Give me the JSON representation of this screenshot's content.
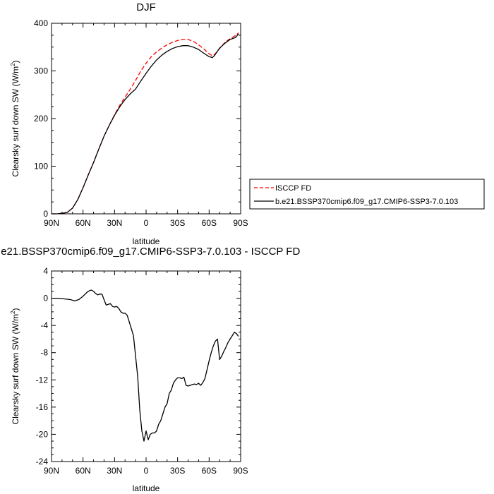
{
  "chart_data": [
    {
      "type": "line",
      "title": "DJF",
      "xlabel": "latitude",
      "ylabel": "Clearsky surf down SW (W/m",
      "ylabel_sup": "2",
      "ylabel_end": ")",
      "xlim": [
        90,
        -90
      ],
      "ylim": [
        0,
        400
      ],
      "xticks": [
        90,
        60,
        30,
        0,
        -30,
        -60,
        -90
      ],
      "xtick_labels": [
        "90N",
        "60N",
        "30N",
        "0",
        "30S",
        "60S",
        "90S"
      ],
      "yticks": [
        0,
        100,
        200,
        300,
        400
      ],
      "ytick_labels": [
        "0",
        "100",
        "200",
        "300",
        "400"
      ],
      "legend": "right",
      "series": [
        {
          "name": "ISCCP FD",
          "color": "#ff0000",
          "dash": "dashed",
          "x": [
            90,
            85,
            80,
            75,
            70,
            65,
            60,
            55,
            50,
            45,
            40,
            35,
            30,
            25,
            20,
            15,
            10,
            5,
            0,
            -5,
            -10,
            -15,
            -20,
            -25,
            -30,
            -35,
            -40,
            -45,
            -50,
            -55,
            -60,
            -63,
            -65,
            -70,
            -75,
            -80,
            -85,
            -88
          ],
          "y": [
            0,
            0,
            1,
            3,
            12,
            30,
            55,
            82,
            108,
            136,
            163,
            186,
            208,
            228,
            245,
            262,
            280,
            300,
            316,
            330,
            340,
            348,
            355,
            360,
            364,
            366,
            366,
            362,
            355,
            346,
            336,
            332,
            334,
            347,
            360,
            368,
            374,
            380
          ]
        },
        {
          "name": "b.e21.BSSP370cmip6.f09_g17.CMIP6-SSP3-7.0.103",
          "color": "#000000",
          "dash": "solid",
          "x": [
            90,
            85,
            80,
            75,
            70,
            65,
            60,
            55,
            50,
            45,
            40,
            35,
            30,
            25,
            20,
            15,
            10,
            5,
            0,
            -5,
            -10,
            -15,
            -20,
            -25,
            -30,
            -35,
            -40,
            -45,
            -50,
            -55,
            -60,
            -63,
            -65,
            -70,
            -75,
            -80,
            -85,
            -88
          ],
          "y": [
            0,
            0,
            1,
            3,
            12,
            30,
            55,
            82,
            108,
            136,
            163,
            186,
            207,
            225,
            240,
            252,
            262,
            279,
            295,
            310,
            323,
            333,
            341,
            347,
            351,
            353,
            353,
            350,
            345,
            337,
            330,
            328,
            332,
            348,
            358,
            366,
            370,
            378
          ]
        }
      ]
    },
    {
      "type": "line",
      "title": "b.e21.BSSP370cmip6.f09_g17.CMIP6-SSP3-7.0.103 - ISCCP FD",
      "xlabel": "latitude",
      "ylabel": "Clearsky surf down SW (W/m",
      "ylabel_sup": "2",
      "ylabel_end": ")",
      "xlim": [
        90,
        -90
      ],
      "ylim": [
        -24,
        4
      ],
      "xticks": [
        90,
        60,
        30,
        0,
        -30,
        -60,
        -90
      ],
      "xtick_labels": [
        "90N",
        "60N",
        "30N",
        "0",
        "30S",
        "60S",
        "90S"
      ],
      "yticks": [
        4,
        0,
        -4,
        -8,
        -12,
        -16,
        -20,
        -24
      ],
      "ytick_labels": [
        "4",
        "0",
        "-4",
        "-8",
        "-12",
        "-16",
        "-20",
        "-24"
      ],
      "series": [
        {
          "color": "#000000",
          "x": [
            90,
            84,
            78,
            72,
            68,
            64,
            60,
            56,
            54,
            52,
            50,
            48,
            46,
            44,
            42,
            40,
            38,
            36,
            34,
            32,
            30,
            28,
            26,
            24,
            22,
            20,
            18,
            16,
            14,
            12,
            10,
            8,
            6,
            4,
            2,
            0,
            -2,
            -4,
            -6,
            -8,
            -10,
            -12,
            -14,
            -16,
            -18,
            -20,
            -22,
            -24,
            -26,
            -28,
            -30,
            -32,
            -34,
            -36,
            -38,
            -40,
            -42,
            -44,
            -46,
            -48,
            -50,
            -52,
            -54,
            -56,
            -58,
            -60,
            -62,
            -64,
            -66,
            -68,
            -70,
            -72,
            -74,
            -76,
            -78,
            -80,
            -82,
            -84,
            -86,
            -88
          ],
          "y": [
            0,
            0,
            -0.1,
            -0.2,
            -0.4,
            -0.2,
            0.3,
            0.9,
            1.1,
            1.2,
            1.0,
            0.7,
            0.5,
            0.6,
            0.6,
            -0.2,
            -1.0,
            -0.9,
            -0.8,
            -1.2,
            -1.3,
            -1.2,
            -1.5,
            -2.0,
            -2.2,
            -2.2,
            -2.5,
            -3.5,
            -4.5,
            -5.5,
            -8.5,
            -11.5,
            -16.5,
            -19.5,
            -21.0,
            -19.5,
            -20.8,
            -20.0,
            -19.8,
            -19.8,
            -19.5,
            -18.5,
            -18.0,
            -17.0,
            -16.0,
            -15.5,
            -14.0,
            -13.5,
            -12.5,
            -12.0,
            -11.7,
            -11.7,
            -11.8,
            -11.6,
            -12.8,
            -12.9,
            -12.8,
            -12.7,
            -12.6,
            -12.7,
            -12.5,
            -12.8,
            -12.4,
            -11.8,
            -10.5,
            -9.2,
            -8.0,
            -7.0,
            -6.3,
            -6.0,
            -9.0,
            -8.5,
            -7.8,
            -7.2,
            -6.5,
            -6.0,
            -5.5,
            -5.0,
            -5.2,
            -5.6
          ]
        }
      ]
    }
  ]
}
